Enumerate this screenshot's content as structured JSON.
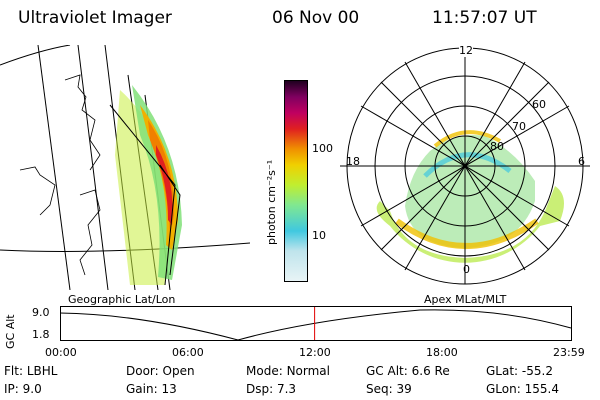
{
  "header": {
    "title": "Ultraviolet Imager",
    "date": "06 Nov 00",
    "time": "11:57:07 UT"
  },
  "colorbar": {
    "label": "photon cm⁻²s⁻¹",
    "ticks": [
      "100",
      "10"
    ],
    "scale": "log",
    "colors": [
      "#e8f4f6",
      "#bfe4ec",
      "#40c8e0",
      "#80e890",
      "#c0ee30",
      "#f0d000",
      "#f09000",
      "#e02020",
      "#c00060",
      "#800060",
      "#200020"
    ]
  },
  "map_panel": {
    "caption": "Geographic Lat/Lon"
  },
  "polar_panel": {
    "caption": "Apex MLat/MLT",
    "mlt_labels": {
      "top": "12",
      "left": "18",
      "right": "6",
      "bottom": "0"
    },
    "lat_labels": [
      "60",
      "70",
      "80"
    ]
  },
  "altitude_strip": {
    "ylabel": "GC Alt",
    "yticks": [
      "9.0",
      "1.8"
    ],
    "xticks": [
      "00:00",
      "06:00",
      "12:00",
      "18:00",
      "23:59"
    ],
    "marker_time": "11:57",
    "marker_color": "#e00000"
  },
  "info": {
    "flt_label": "Flt:",
    "flt_value": "LBHL",
    "ip_label": "IP:",
    "ip_value": "9.0",
    "door_label": "Door:",
    "door_value": "Open",
    "gain_label": "Gain:",
    "gain_value": "13",
    "mode_label": "Mode:",
    "mode_value": "Normal",
    "dsp_label": "Dsp:",
    "dsp_value": "7.3",
    "gcalt_label": "GC Alt:",
    "gcalt_value": "6.6 Re",
    "seq_label": "Seq:",
    "seq_value": "39",
    "glat_label": "GLat:",
    "glat_value": "-55.2",
    "glon_label": "GLon:",
    "glon_value": "155.4"
  }
}
